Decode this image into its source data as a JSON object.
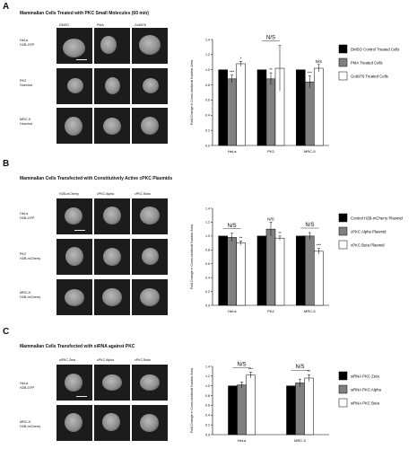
{
  "panels": [
    {
      "letter": "A",
      "title": "Mammalian Cells Treated with PKC Small Molecules (60 min)",
      "columns": [
        "DMSO",
        "PMA",
        "Go6976"
      ],
      "rows": [
        "HeLa\nH2B-GFP",
        "PK2\nHoechst",
        "MRC-5\nHoechst"
      ],
      "chart_data": {
        "type": "bar",
        "categories": [
          "HeLa",
          "PK2",
          "MRC-5"
        ],
        "ylabel": "Fold Change in Cross-sectional Nuclear Area",
        "ylim": [
          0,
          1.4
        ],
        "yticks": [
          0,
          0.2,
          0.4,
          0.6,
          0.8,
          1.0,
          1.2,
          1.4
        ],
        "legend_position": "right",
        "series": [
          {
            "name": "DMSO Control Treated Cells",
            "color": "#000000",
            "values": [
              1.0,
              1.0,
              1.0
            ],
            "errors": [
              0.0,
              0.0,
              0.0
            ]
          },
          {
            "name": "PMA Treated Cells",
            "color": "#808080",
            "values": [
              0.88,
              0.88,
              0.84
            ],
            "errors": [
              0.05,
              0.08,
              0.08
            ]
          },
          {
            "name": "Go6976 Treated Cells",
            "color": "#ffffff",
            "values": [
              1.08,
              1.02,
              1.02
            ],
            "errors": [
              0.03,
              0.3,
              0.05
            ]
          }
        ],
        "annotations": [
          {
            "category": 0,
            "series": 1,
            "text": "***"
          },
          {
            "category": 0,
            "series": 2,
            "text": "*"
          },
          {
            "category": 1,
            "series": 1,
            "text": "**"
          },
          {
            "category": 1,
            "series": 1,
            "text": "N/S",
            "group": true
          },
          {
            "category": 2,
            "series": 1,
            "text": "***"
          },
          {
            "category": 2,
            "series": 2,
            "text": "N/S"
          }
        ]
      }
    },
    {
      "letter": "B",
      "title": "Mammalian Cells Transfected with Constitutively Active cPKC Plasmids",
      "columns": [
        "H2B-mCherry",
        "cPKC Alpha",
        "cPKC Beta"
      ],
      "rows": [
        "HeLa\nH2B-GFP",
        "PK2\nH2B-mCherry",
        "MRC-5\nH2B-mCherry"
      ],
      "chart_data": {
        "type": "bar",
        "categories": [
          "HeLa",
          "PK2",
          "MRC-5"
        ],
        "ylabel": "Fold Change in Cross-sectional Nuclear Area",
        "ylim": [
          0,
          1.4
        ],
        "yticks": [
          0,
          0.2,
          0.4,
          0.6,
          0.8,
          1.0,
          1.2,
          1.4
        ],
        "legend_position": "right",
        "series": [
          {
            "name": "Control H2B-mCherry Plasmid",
            "color": "#000000",
            "values": [
              1.0,
              1.0,
              1.0
            ],
            "errors": [
              0.0,
              0.0,
              0.0
            ]
          },
          {
            "name": "cPKC Alpha Plasmid",
            "color": "#808080",
            "values": [
              0.98,
              1.1,
              1.0
            ],
            "errors": [
              0.06,
              0.1,
              0.05
            ]
          },
          {
            "name": "cPKC Beta Plasmid",
            "color": "#ffffff",
            "values": [
              0.9,
              0.97,
              0.78
            ],
            "errors": [
              0.03,
              0.03,
              0.04
            ]
          }
        ],
        "annotations": [
          {
            "category": 0,
            "series": 1,
            "text": "N/S",
            "group": true
          },
          {
            "category": 0,
            "series": 2,
            "text": "**"
          },
          {
            "category": 1,
            "series": 1,
            "text": "N/S"
          },
          {
            "category": 1,
            "series": 2,
            "text": "**"
          },
          {
            "category": 2,
            "series": 1,
            "text": "N/S",
            "group": true
          },
          {
            "category": 2,
            "series": 2,
            "text": "***"
          }
        ]
      }
    },
    {
      "letter": "C",
      "title": "Mammalian Cells Transfected with siRNA against PKC",
      "columns": [
        "siPKC Zeta",
        "cPKC Alpha",
        "cPKC Beta"
      ],
      "rows": [
        "HeLa\nH2B-GFP",
        "MRC-5\nH2B-mCherry"
      ],
      "chart_data": {
        "type": "bar",
        "categories": [
          "HeLa",
          "MRC-5"
        ],
        "ylabel": "Fold Change in Cross-sectional Nuclear Area",
        "ylim": [
          0,
          1.4
        ],
        "yticks": [
          0,
          0.2,
          0.4,
          0.6,
          0.8,
          1.0,
          1.2,
          1.4
        ],
        "legend_position": "right",
        "series": [
          {
            "name": "siRNA PKC Zeta",
            "color": "#000000",
            "values": [
              1.0,
              1.0
            ],
            "errors": [
              0.0,
              0.0
            ]
          },
          {
            "name": "siRNA PKC Alpha",
            "color": "#808080",
            "values": [
              1.02,
              1.06
            ],
            "errors": [
              0.06,
              0.08
            ]
          },
          {
            "name": "siRNA PKC Beta",
            "color": "#ffffff",
            "values": [
              1.22,
              1.16
            ],
            "errors": [
              0.06,
              0.07
            ]
          }
        ],
        "annotations": [
          {
            "category": 0,
            "series": 1,
            "text": "N/S",
            "group": true
          },
          {
            "category": 0,
            "series": 2,
            "text": "***"
          },
          {
            "category": 1,
            "series": 1,
            "text": "N/S",
            "group": true
          },
          {
            "category": 1,
            "series": 2,
            "text": "**"
          }
        ]
      }
    }
  ]
}
